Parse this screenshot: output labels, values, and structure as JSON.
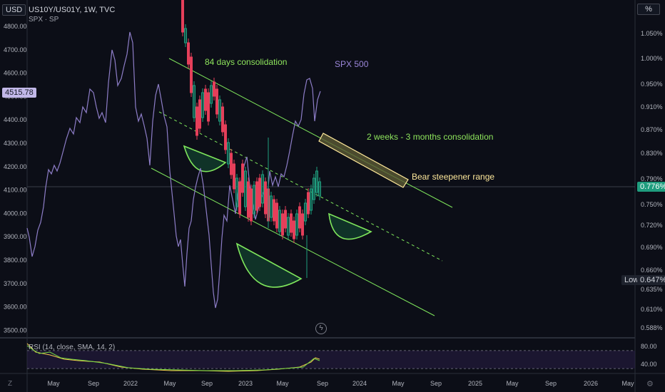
{
  "toolbar": {
    "currency_button": "USD",
    "percent_button": "%",
    "symbol_title": "US10Y/US01Y, 1W, TVC",
    "overlay_label": "SPX · SP"
  },
  "left_axis": {
    "ticks": [
      "4800.00",
      "4700.00",
      "4600.00",
      "4500.00",
      "4400.00",
      "4300.00",
      "4200.00",
      "4100.00",
      "4000.00",
      "3900.00",
      "3800.00",
      "3700.00",
      "3600.00",
      "3500.00"
    ],
    "current_label": "4515.78"
  },
  "right_axis": {
    "ticks": [
      "1.050%",
      "1.000%",
      "0.950%",
      "0.910%",
      "0.870%",
      "0.830%",
      "0.790%",
      "0.750%",
      "0.720%",
      "0.690%",
      "0.660%",
      "0.635%",
      "0.610%",
      "0.588%"
    ],
    "current_label": "0.776%",
    "low_label": "Low",
    "low_value": "0.647%"
  },
  "time_axis": {
    "labels": [
      "May",
      "Sep",
      "2022",
      "May",
      "Sep",
      "2023",
      "May",
      "Sep",
      "2024",
      "May",
      "Sep",
      "2025",
      "May",
      "Sep",
      "2026",
      "May"
    ]
  },
  "annotations": {
    "consolidation_84": "84 days consolidation",
    "spx_label": "SPX 500",
    "consolidation_2w3m": "2 weeks - 3 months consolidation",
    "bear_steepener": "Bear steepener range"
  },
  "rsi": {
    "label": "RSI (14, close, SMA, 14, 2)",
    "ticks": [
      "80.00",
      "40.00"
    ]
  },
  "colors": {
    "background": "#0c0e17",
    "spx_line": "#8d7dc7",
    "candle_up": "#1f9d7e",
    "candle_down": "#e53f5a",
    "channel": "#7fe65c",
    "annotation_text": "#8ee55c",
    "bear_text": "#fde79a",
    "rsi_line": "#74d645",
    "rsi_ma": "#f3c74b"
  },
  "chart_data": {
    "type": "line",
    "series": [
      {
        "name": "SPX · SP",
        "x": [
          "2021-04",
          "2021-05",
          "2021-06",
          "2021-07",
          "2021-08",
          "2021-09",
          "2021-10",
          "2021-11",
          "2021-12",
          "2022-01",
          "2022-02",
          "2022-03",
          "2022-04",
          "2022-05",
          "2022-06",
          "2022-07",
          "2022-08",
          "2022-09",
          "2022-10",
          "2022-11",
          "2022-12",
          "2023-01",
          "2023-02",
          "2023-03",
          "2023-04",
          "2023-05",
          "2023-06",
          "2023-07",
          "2023-08"
        ],
        "values": [
          3900,
          3800,
          4050,
          4150,
          4200,
          4400,
          4600,
          4720,
          4750,
          4450,
          4380,
          4580,
          4130,
          4000,
          3650,
          4000,
          4280,
          3640,
          3590,
          4030,
          3850,
          4080,
          3990,
          3960,
          4160,
          4150,
          4450,
          4590,
          4500
        ]
      },
      {
        "name": "US10Y/US01Y",
        "x": [
          "2022-03",
          "2022-04",
          "2022-05",
          "2022-06",
          "2022-07",
          "2022-08",
          "2022-09",
          "2022-10",
          "2022-11",
          "2022-12",
          "2023-01",
          "2023-02",
          "2023-03",
          "2023-04",
          "2023-05",
          "2023-06",
          "2023-07",
          "2023-08"
        ],
        "values": [
          1.06,
          0.92,
          0.89,
          0.93,
          0.87,
          0.84,
          0.8,
          0.76,
          0.73,
          0.75,
          0.76,
          0.73,
          0.74,
          0.72,
          0.71,
          0.72,
          0.73,
          0.776
        ]
      }
    ],
    "left_ylim": [
      3500,
      4830
    ],
    "right_ylim": [
      0.588,
      1.06
    ],
    "current_value": 0.776,
    "low_value": 0.647
  }
}
